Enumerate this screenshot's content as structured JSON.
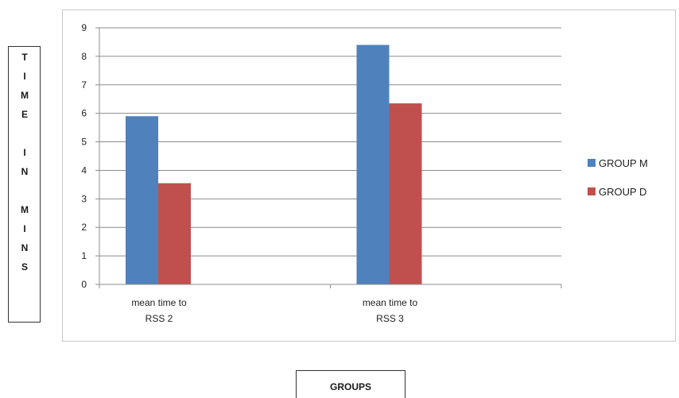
{
  "chart_data": {
    "type": "bar",
    "categories": [
      [
        "mean time to",
        "RSS 2"
      ],
      [
        "mean time to",
        "RSS 3"
      ]
    ],
    "series": [
      {
        "name": "GROUP M",
        "values": [
          5.9,
          8.4
        ],
        "color": "#4f81bd"
      },
      {
        "name": "GROUP D",
        "values": [
          3.55,
          6.35
        ],
        "color": "#c0504d"
      }
    ],
    "ylim": [
      0,
      9
    ],
    "yticks": [
      0,
      1,
      2,
      3,
      4,
      5,
      6,
      7,
      8,
      9
    ],
    "ylabel_letters": [
      "T",
      "I",
      "M",
      "E",
      "",
      "I",
      "N",
      "",
      "M",
      "I",
      "N",
      "S"
    ],
    "xlabel": "GROUPS",
    "grid": true,
    "legend": "right"
  }
}
